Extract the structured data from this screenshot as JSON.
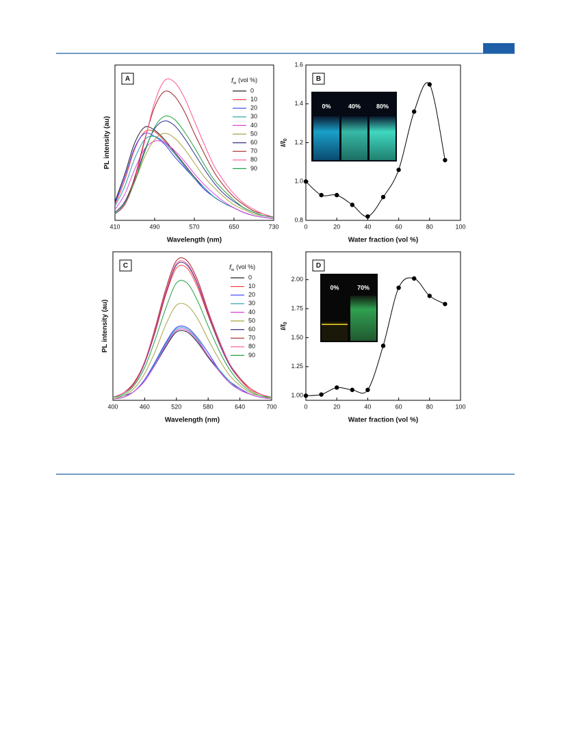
{
  "chart_data": [
    {
      "type": "line",
      "panel": "A",
      "xlabel": "Wavelength (nm)",
      "ylabel": "PL intensity (au)",
      "legend_title": "f",
      "legend_title_sub": "w",
      "legend_title_rest": "(vol %)",
      "xlim": [
        410,
        730
      ],
      "xticks": [
        410,
        490,
        570,
        650,
        730
      ],
      "ylim": [
        0,
        100
      ],
      "x": [
        410,
        430,
        450,
        470,
        490,
        510,
        530,
        550,
        570,
        590,
        610,
        630,
        650,
        670,
        690,
        710,
        730
      ],
      "series": [
        {
          "name": "0",
          "color": "#222222",
          "values": [
            12,
            30,
            50,
            60,
            58,
            52,
            44,
            36,
            28,
            21,
            15,
            11,
            8,
            5,
            3,
            2,
            1
          ]
        },
        {
          "name": "10",
          "color": "#ff4040",
          "values": [
            10,
            26,
            46,
            57,
            57,
            51,
            43,
            35,
            27,
            20,
            15,
            11,
            8,
            5,
            3,
            2,
            1
          ]
        },
        {
          "name": "20",
          "color": "#3a3aff",
          "values": [
            11,
            28,
            47,
            56,
            54,
            49,
            41,
            34,
            27,
            20,
            15,
            11,
            8,
            5,
            3,
            2,
            1
          ]
        },
        {
          "name": "30",
          "color": "#1fa0a8",
          "values": [
            9,
            22,
            40,
            52,
            54,
            50,
            43,
            35,
            27,
            21,
            15,
            11,
            8,
            5,
            3,
            2,
            1
          ]
        },
        {
          "name": "40",
          "color": "#e040e0",
          "values": [
            7,
            17,
            33,
            46,
            51,
            50,
            45,
            38,
            30,
            23,
            17,
            12,
            8,
            5,
            3,
            2,
            1
          ]
        },
        {
          "name": "50",
          "color": "#a8a040",
          "values": [
            5,
            12,
            25,
            41,
            52,
            56,
            53,
            46,
            37,
            28,
            21,
            15,
            10,
            7,
            4,
            3,
            2
          ]
        },
        {
          "name": "60",
          "color": "#303090",
          "values": [
            5,
            12,
            27,
            45,
            59,
            64,
            61,
            53,
            43,
            33,
            24,
            17,
            12,
            8,
            5,
            3,
            2
          ]
        },
        {
          "name": "70",
          "color": "#a02020",
          "values": [
            4,
            11,
            28,
            52,
            73,
            83,
            80,
            70,
            56,
            43,
            31,
            22,
            15,
            10,
            6,
            4,
            2
          ]
        },
        {
          "name": "80",
          "color": "#ff5090",
          "values": [
            4,
            10,
            26,
            51,
            76,
            90,
            89,
            79,
            64,
            49,
            35,
            25,
            17,
            11,
            7,
            4,
            2
          ]
        },
        {
          "name": "90",
          "color": "#20a040",
          "values": [
            4,
            11,
            25,
            44,
            60,
            67,
            65,
            57,
            47,
            36,
            26,
            19,
            13,
            8,
            5,
            3,
            2
          ]
        }
      ]
    },
    {
      "type": "scatter",
      "panel": "B",
      "xlabel": "Water fraction (vol %)",
      "ylabel": "I/I",
      "ylabel_sub": "0",
      "inset_labels": [
        "0%",
        "40%",
        "80%"
      ],
      "xlim": [
        0,
        100
      ],
      "xticks": [
        0,
        20,
        40,
        60,
        80,
        100
      ],
      "ylim": [
        0.8,
        1.6
      ],
      "yticks": [
        0.8,
        {
          "value": 1,
          "label": "1.0"
        },
        1.2,
        1.4,
        1.6
      ],
      "x": [
        0,
        10,
        20,
        30,
        40,
        50,
        60,
        70,
        80,
        90
      ],
      "values": [
        1.0,
        0.93,
        0.93,
        0.88,
        0.82,
        0.92,
        1.06,
        1.36,
        1.5,
        1.11
      ],
      "color": "#000000"
    },
    {
      "type": "line",
      "panel": "C",
      "xlabel": "Wavelength (nm)",
      "ylabel": "PL intensity (au)",
      "legend_title": "f",
      "legend_title_sub": "w",
      "legend_title_rest": "(vol %)",
      "xlim": [
        400,
        700
      ],
      "xticks": [
        400,
        460,
        520,
        580,
        640,
        700
      ],
      "ylim": [
        0,
        100
      ],
      "x": [
        400,
        420,
        440,
        460,
        480,
        500,
        520,
        540,
        560,
        580,
        600,
        620,
        640,
        660,
        680,
        700
      ],
      "series": [
        {
          "name": "0",
          "color": "#222222",
          "values": [
            1,
            2,
            6,
            13,
            24,
            36,
            46,
            46,
            39,
            29,
            20,
            12,
            7,
            4,
            2,
            1
          ]
        },
        {
          "name": "10",
          "color": "#ff4040",
          "values": [
            2,
            5,
            11,
            25,
            46,
            71,
            89,
            89,
            76,
            57,
            39,
            24,
            14,
            7,
            4,
            2
          ]
        },
        {
          "name": "20",
          "color": "#3a3aff",
          "values": [
            1,
            3,
            6,
            14,
            26,
            39,
            49,
            49,
            42,
            32,
            21,
            13,
            8,
            4,
            2,
            1
          ]
        },
        {
          "name": "30",
          "color": "#1fa0a8",
          "values": [
            1,
            2,
            6,
            13,
            25,
            38,
            48,
            48,
            41,
            30,
            21,
            13,
            7,
            4,
            2,
            1
          ]
        },
        {
          "name": "40",
          "color": "#e040e0",
          "values": [
            1,
            2,
            6,
            13,
            24,
            37,
            47,
            47,
            40,
            30,
            20,
            12,
            7,
            4,
            2,
            1
          ]
        },
        {
          "name": "50",
          "color": "#a8a040",
          "values": [
            1,
            3,
            8,
            18,
            33,
            51,
            64,
            64,
            55,
            41,
            28,
            17,
            10,
            5,
            3,
            1
          ]
        },
        {
          "name": "60",
          "color": "#303090",
          "values": [
            2,
            5,
            11,
            25,
            47,
            72,
            91,
            91,
            78,
            58,
            39,
            24,
            14,
            8,
            4,
            2
          ]
        },
        {
          "name": "70",
          "color": "#a02020",
          "values": [
            2,
            5,
            12,
            26,
            49,
            75,
            94,
            94,
            81,
            60,
            41,
            25,
            15,
            8,
            4,
            2
          ]
        },
        {
          "name": "80",
          "color": "#ff5090",
          "values": [
            2,
            5,
            11,
            26,
            48,
            73,
            92,
            92,
            79,
            59,
            40,
            25,
            14,
            8,
            4,
            2
          ]
        },
        {
          "name": "90",
          "color": "#20a040",
          "values": [
            2,
            4,
            10,
            22,
            41,
            62,
            79,
            79,
            67,
            50,
            34,
            21,
            12,
            6,
            3,
            2
          ]
        }
      ]
    },
    {
      "type": "scatter",
      "panel": "D",
      "xlabel": "Water fraction (vol %)",
      "ylabel": "I/I",
      "ylabel_sub": "0",
      "inset_labels": [
        "0%",
        "70%"
      ],
      "xlim": [
        0,
        100
      ],
      "xticks": [
        0,
        20,
        40,
        60,
        80,
        100
      ],
      "ylim": [
        0.96,
        2.24
      ],
      "yticks": [
        {
          "value": 1,
          "label": "1.00"
        },
        1.25,
        {
          "value": 1.5,
          "label": "1.50"
        },
        1.75,
        {
          "value": 2,
          "label": "2.00"
        }
      ],
      "x": [
        0,
        10,
        20,
        30,
        40,
        50,
        60,
        70,
        80,
        90
      ],
      "values": [
        1.0,
        1.01,
        1.07,
        1.05,
        1.05,
        1.43,
        1.93,
        2.01,
        1.86,
        1.79
      ],
      "color": "#000000"
    }
  ]
}
